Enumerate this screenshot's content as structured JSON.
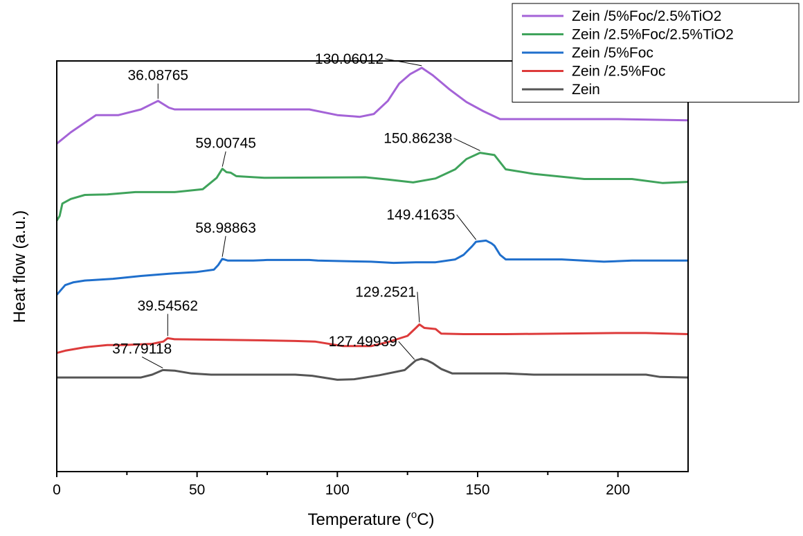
{
  "chart_data": {
    "type": "line",
    "title": "",
    "xlabel": "Temperature (",
    "xlabel_sup": "o",
    "xlabel_unit": "C)",
    "ylabel": "Heat flow (a.u.)",
    "xlim": [
      0,
      225
    ],
    "ylim": [
      -1.0,
      6.2
    ],
    "x_ticks": [
      0,
      50,
      100,
      150,
      200
    ],
    "y_ticks_shown": false,
    "grid": false,
    "legend_position": "top-right",
    "series": [
      {
        "name": "Zein /5%Foc/2.5%TiO2",
        "color": "#a463d7",
        "points": [
          [
            0,
            4.75
          ],
          [
            5,
            4.95
          ],
          [
            14,
            5.25
          ],
          [
            22,
            5.25
          ],
          [
            30,
            5.35
          ],
          [
            36.09,
            5.5
          ],
          [
            40,
            5.38
          ],
          [
            42,
            5.35
          ],
          [
            90,
            5.35
          ],
          [
            100,
            5.25
          ],
          [
            108,
            5.22
          ],
          [
            113,
            5.27
          ],
          [
            118,
            5.5
          ],
          [
            122,
            5.8
          ],
          [
            126,
            5.97
          ],
          [
            130.06,
            6.08
          ],
          [
            134,
            5.95
          ],
          [
            140,
            5.7
          ],
          [
            146,
            5.48
          ],
          [
            152,
            5.32
          ],
          [
            158,
            5.18
          ],
          [
            200,
            5.18
          ],
          [
            225,
            5.16
          ]
        ]
      },
      {
        "name": "Zein /2.5%Foc/2.5%TiO2",
        "color": "#3fa35b",
        "points": [
          [
            0,
            3.4
          ],
          [
            1,
            3.48
          ],
          [
            2,
            3.7
          ],
          [
            5,
            3.78
          ],
          [
            10,
            3.85
          ],
          [
            18,
            3.86
          ],
          [
            28,
            3.9
          ],
          [
            42,
            3.9
          ],
          [
            52,
            3.95
          ],
          [
            57,
            4.15
          ],
          [
            59.01,
            4.31
          ],
          [
            60.5,
            4.25
          ],
          [
            62,
            4.24
          ],
          [
            64,
            4.18
          ],
          [
            74,
            4.15
          ],
          [
            110,
            4.16
          ],
          [
            118,
            4.12
          ],
          [
            127,
            4.07
          ],
          [
            135,
            4.14
          ],
          [
            142,
            4.3
          ],
          [
            146,
            4.48
          ],
          [
            150.86,
            4.59
          ],
          [
            156,
            4.55
          ],
          [
            160,
            4.3
          ],
          [
            170,
            4.22
          ],
          [
            188,
            4.13
          ],
          [
            205,
            4.13
          ],
          [
            216,
            4.06
          ],
          [
            225,
            4.08
          ]
        ]
      },
      {
        "name": "Zein /5%Foc",
        "color": "#1f6fcc",
        "points": [
          [
            0,
            2.1
          ],
          [
            3,
            2.27
          ],
          [
            6,
            2.32
          ],
          [
            10,
            2.35
          ],
          [
            20,
            2.38
          ],
          [
            30,
            2.43
          ],
          [
            40,
            2.47
          ],
          [
            50,
            2.5
          ],
          [
            56,
            2.54
          ],
          [
            57.5,
            2.62
          ],
          [
            58.99,
            2.73
          ],
          [
            61,
            2.7
          ],
          [
            70,
            2.7
          ],
          [
            75,
            2.71
          ],
          [
            90,
            2.71
          ],
          [
            93,
            2.7
          ],
          [
            112,
            2.68
          ],
          [
            120,
            2.66
          ],
          [
            128,
            2.67
          ],
          [
            135,
            2.67
          ],
          [
            142,
            2.72
          ],
          [
            145,
            2.8
          ],
          [
            148,
            2.95
          ],
          [
            149.42,
            3.03
          ],
          [
            153,
            3.05
          ],
          [
            155,
            3.0
          ],
          [
            156,
            2.96
          ],
          [
            158,
            2.8
          ],
          [
            160,
            2.72
          ],
          [
            180,
            2.72
          ],
          [
            195,
            2.68
          ],
          [
            205,
            2.7
          ],
          [
            225,
            2.7
          ]
        ]
      },
      {
        "name": "Zein /2.5%Foc",
        "color": "#dd3b3b",
        "points": [
          [
            0,
            1.08
          ],
          [
            3,
            1.12
          ],
          [
            10,
            1.18
          ],
          [
            18,
            1.22
          ],
          [
            24,
            1.22
          ],
          [
            34,
            1.24
          ],
          [
            38,
            1.28
          ],
          [
            39.55,
            1.34
          ],
          [
            42,
            1.32
          ],
          [
            60,
            1.31
          ],
          [
            75,
            1.3
          ],
          [
            85,
            1.29
          ],
          [
            92,
            1.28
          ],
          [
            102,
            1.2
          ],
          [
            112,
            1.2
          ],
          [
            118,
            1.27
          ],
          [
            125,
            1.38
          ],
          [
            128,
            1.52
          ],
          [
            129.25,
            1.58
          ],
          [
            131,
            1.52
          ],
          [
            135,
            1.5
          ],
          [
            137,
            1.42
          ],
          [
            145,
            1.41
          ],
          [
            160,
            1.41
          ],
          [
            200,
            1.43
          ],
          [
            210,
            1.43
          ],
          [
            225,
            1.41
          ]
        ]
      },
      {
        "name": "Zein",
        "color": "#555555",
        "points": [
          [
            0,
            0.65
          ],
          [
            30,
            0.65
          ],
          [
            34,
            0.7
          ],
          [
            37.79,
            0.78
          ],
          [
            42,
            0.77
          ],
          [
            48,
            0.72
          ],
          [
            55,
            0.7
          ],
          [
            85,
            0.7
          ],
          [
            91,
            0.68
          ],
          [
            100,
            0.61
          ],
          [
            106,
            0.62
          ],
          [
            115,
            0.69
          ],
          [
            124,
            0.78
          ],
          [
            128,
            0.95
          ],
          [
            130,
            0.98
          ],
          [
            132,
            0.95
          ],
          [
            134,
            0.9
          ],
          [
            137,
            0.8
          ],
          [
            141,
            0.72
          ],
          [
            160,
            0.72
          ],
          [
            170,
            0.7
          ],
          [
            210,
            0.7
          ],
          [
            215,
            0.66
          ],
          [
            225,
            0.65
          ]
        ]
      }
    ],
    "annotations": [
      {
        "text": "36.08765",
        "series": 0,
        "x": 36.08765
      },
      {
        "text": "130.06012",
        "series": 0,
        "x": 130.06012
      },
      {
        "text": "59.00745",
        "series": 1,
        "x": 59.00745
      },
      {
        "text": "150.86238",
        "series": 1,
        "x": 150.86238
      },
      {
        "text": "58.98863",
        "series": 2,
        "x": 58.98863
      },
      {
        "text": "149.41635",
        "series": 2,
        "x": 149.41635
      },
      {
        "text": "39.54562",
        "series": 3,
        "x": 39.54562
      },
      {
        "text": "129.2521",
        "series": 3,
        "x": 129.2521
      },
      {
        "text": "37.79118",
        "series": 4,
        "x": 37.79118
      },
      {
        "text": "127.49939",
        "series": 4,
        "x": 127.49939
      }
    ]
  }
}
